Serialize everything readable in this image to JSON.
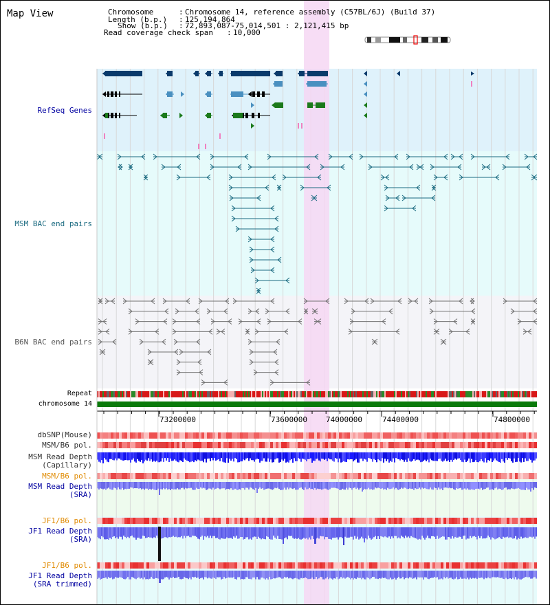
{
  "title": "Map View",
  "info": {
    "chromosome_label": "Chromosome",
    "chromosome_value": "Chromosome 14, reference assembly (C57BL/6J) (Build 37)",
    "length_label": "Length (b.p.)",
    "length_value": "125,194,864",
    "show_label": "Show (b.p.)",
    "show_value": "72,893,087-75,014,501 : 2,121,415 bp",
    "coverage_label": "Read coverage check span",
    "coverage_value": "10,000"
  },
  "tracks": {
    "refseq": "RefSeq Genes",
    "msm_bac": "MSM BAC end pairs",
    "b6n_bac": "B6N BAC end pairs",
    "repeat": "Repeat",
    "chromosome": "chromosome 14",
    "dbsnp": "dbSNP(Mouse)",
    "msm_b6_pol": "MSM/B6 pol.",
    "msm_read_depth_cap_1": "MSM Read Depth",
    "msm_read_depth_cap_2": "(Capillary)",
    "msm_b6_pol_sra": "MSM/B6 pol.",
    "msm_read_depth_sra_1": "MSM Read Depth",
    "msm_read_depth_sra_2": "(SRA)",
    "jf1_b6_pol": "JF1/B6 pol.",
    "jf1_read_depth_1": "JF1 Read Depth",
    "jf1_read_depth_2": "(SRA)",
    "jf1_b6_pol_trim": "JF1/B6 pol.",
    "jf1_read_depth_trim_1": "JF1 Read Depth",
    "jf1_read_depth_trim_2": "(SRA trimmed)"
  },
  "axis": {
    "ticks": [
      "73200000",
      "73600000",
      "74000000",
      "74400000",
      "74800000"
    ]
  },
  "colors": {
    "refseq_bg": "#dff2fb",
    "msm_bg": "#e6fbfb",
    "b6n_bg": "#f4f4f8",
    "highlight": "#f6d7f3",
    "dark_blue": "#0a3a6b",
    "mid_blue": "#4a90c0",
    "green": "#1b7a1b",
    "teal_line": "#1a6a80",
    "gray_line": "#707070",
    "chrom_green": "#0a7a0a",
    "label_blue": "#0000a0",
    "label_orange": "#e08a00"
  }
}
